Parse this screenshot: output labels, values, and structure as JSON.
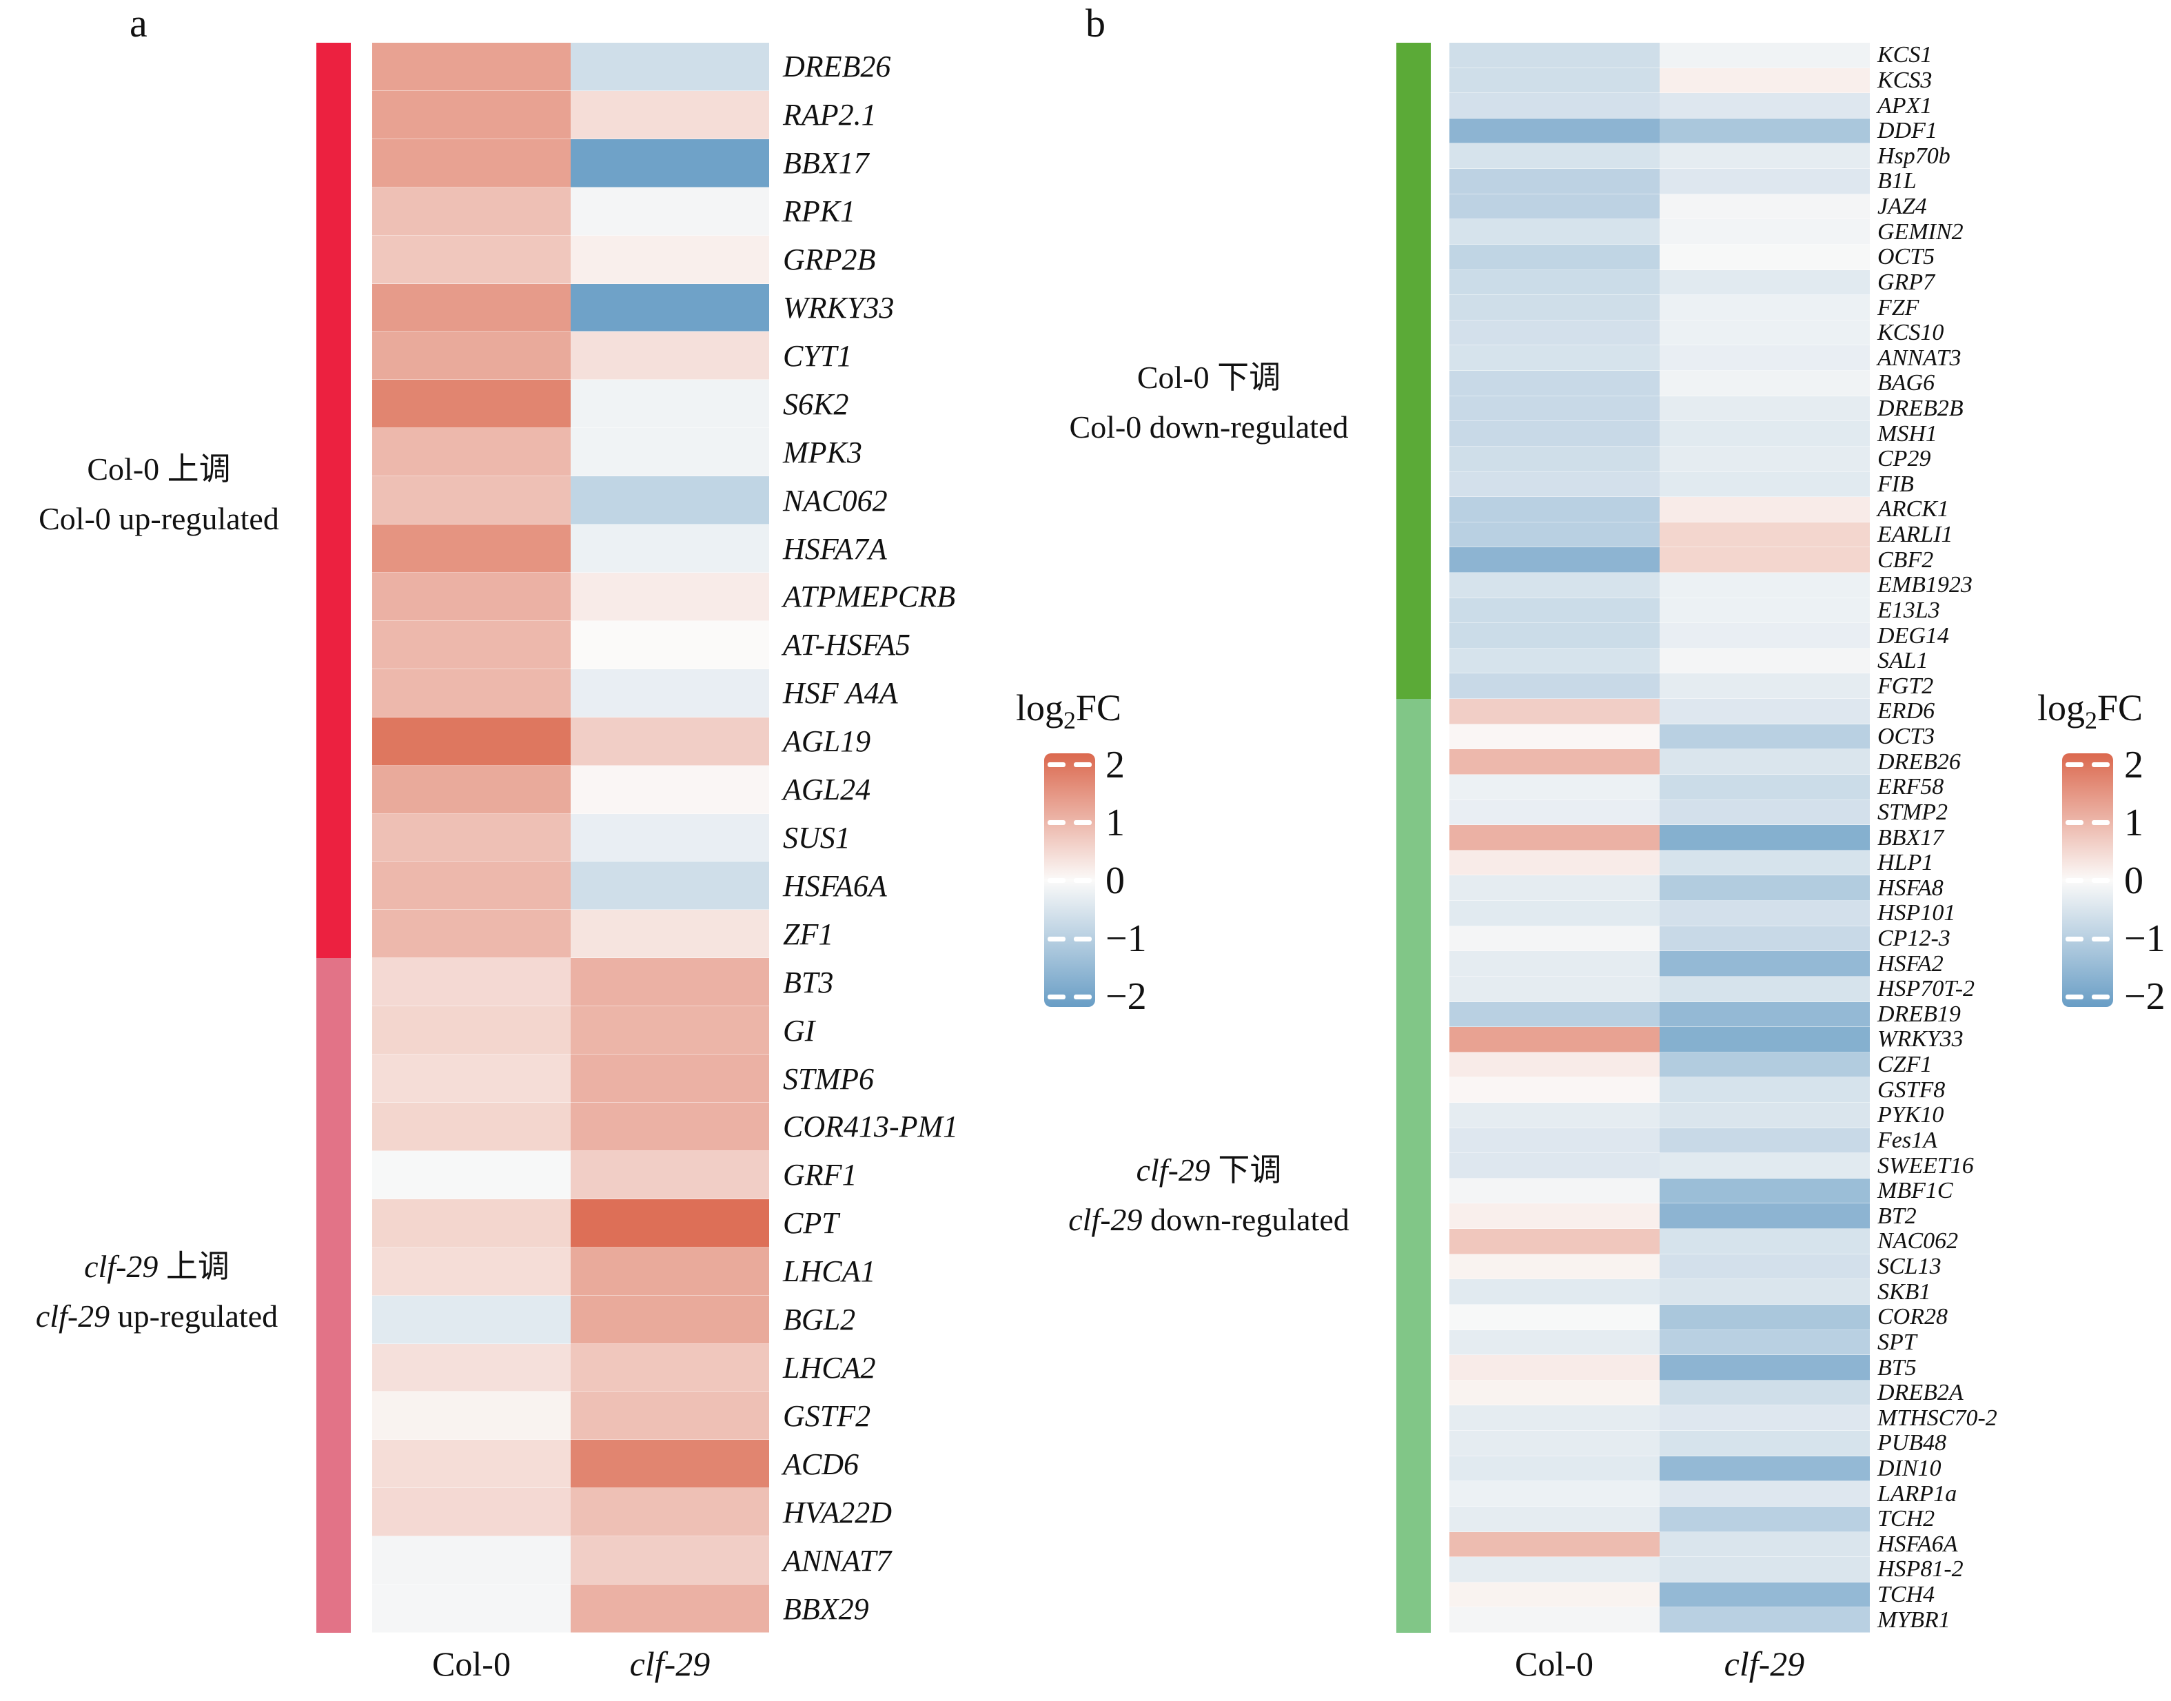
{
  "colormap": {
    "domain": [
      -2,
      2
    ],
    "positive": "#db684e",
    "mid": "#fbfaf9",
    "negative": "#689dc5"
  },
  "legend": {
    "title_log": "log",
    "title_sub": "2",
    "title_fc": "FC",
    "ticks": [
      "2",
      "1",
      "0",
      "−1",
      "−2"
    ],
    "tick_values": [
      2,
      1,
      0,
      -1,
      -2
    ]
  },
  "chart_data": [
    {
      "type": "heatmap",
      "panel_letter": "a",
      "xlabel": "",
      "ylabel": "",
      "value_label": "log2FC",
      "value_range": [
        -2,
        2
      ],
      "columns": [
        {
          "t": "Col-0",
          "i": false
        },
        {
          "t": "clf-29",
          "i": true
        }
      ],
      "groups": [
        {
          "color": "#ec2140",
          "count": 19,
          "line1": [
            {
              "t": "Col-0 上调",
              "i": false
            }
          ],
          "line2": [
            {
              "t": "Col-0 up-regulated",
              "i": false
            }
          ]
        },
        {
          "color": "#e27387",
          "count": 14,
          "line1": [
            {
              "t": "clf-29",
              "i": true
            },
            {
              "t": " 上调",
              "i": false
            }
          ],
          "line2": [
            {
              "t": "clf-29",
              "i": true
            },
            {
              "t": " up-regulated",
              "i": false
            }
          ]
        }
      ],
      "genes": [
        [
          "DREB26",
          1.2,
          -0.6
        ],
        [
          "RAP2.1",
          1.2,
          0.4
        ],
        [
          "BBX17",
          1.2,
          -1.9
        ],
        [
          "RPK1",
          0.8,
          -0.1
        ],
        [
          "GRP2B",
          0.7,
          0.15
        ],
        [
          "WRKY33",
          1.3,
          -1.9
        ],
        [
          "CYT1",
          1.1,
          0.35
        ],
        [
          "S6K2",
          1.6,
          -0.15
        ],
        [
          "MPK3",
          0.9,
          -0.15
        ],
        [
          "NAC062",
          0.8,
          -0.8
        ],
        [
          "HSFA7A",
          1.4,
          -0.2
        ],
        [
          "ATPMEPCRB",
          1.0,
          0.2
        ],
        [
          "AT-HSFA5",
          0.9,
          0.0
        ],
        [
          "HSF A4A",
          0.9,
          -0.25
        ],
        [
          "AGL19",
          1.8,
          0.6
        ],
        [
          "AGL24",
          1.1,
          0.05
        ],
        [
          "SUS1",
          0.8,
          -0.25
        ],
        [
          "HSFA6A",
          0.9,
          -0.6
        ],
        [
          "ZF1",
          0.9,
          0.3
        ],
        [
          "BT3",
          0.45,
          1.0
        ],
        [
          "GI",
          0.5,
          0.95
        ],
        [
          "STMP6",
          0.4,
          1.0
        ],
        [
          "COR413-PM1",
          0.5,
          1.0
        ],
        [
          "GRF1",
          -0.05,
          0.6
        ],
        [
          "CPT",
          0.5,
          1.9
        ],
        [
          "LHCA1",
          0.4,
          1.1
        ],
        [
          "BGL2",
          -0.35,
          1.1
        ],
        [
          "LHCA2",
          0.35,
          0.7
        ],
        [
          "GSTF2",
          0.1,
          0.8
        ],
        [
          "ACD6",
          0.4,
          1.6
        ],
        [
          "HVA22D",
          0.45,
          0.8
        ],
        [
          "ANNAT7",
          -0.1,
          0.6
        ],
        [
          "BBX29",
          -0.08,
          1.0
        ]
      ]
    },
    {
      "type": "heatmap",
      "panel_letter": "b",
      "xlabel": "",
      "ylabel": "",
      "value_label": "log2FC",
      "value_range": [
        -2,
        2
      ],
      "columns": [
        {
          "t": "Col-0",
          "i": false
        },
        {
          "t": "clf-29",
          "i": true
        }
      ],
      "groups": [
        {
          "color": "#5baa37",
          "count": 26,
          "line1": [
            {
              "t": "Col-0 下调",
              "i": false
            }
          ],
          "line2": [
            {
              "t": "Col-0 down-regulated",
              "i": false
            }
          ]
        },
        {
          "color": "#81c687",
          "count": 37,
          "line1": [
            {
              "t": "clf-29",
              "i": true
            },
            {
              "t": " 下调",
              "i": false
            }
          ],
          "line2": [
            {
              "t": "clf-29",
              "i": true
            },
            {
              "t": " down-regulated",
              "i": false
            }
          ]
        }
      ],
      "genes": [
        [
          "KCS1",
          -0.6,
          -0.15
        ],
        [
          "KCS3",
          -0.6,
          0.15
        ],
        [
          "APX1",
          -0.55,
          -0.4
        ],
        [
          "DDF1",
          -1.5,
          -1.1
        ],
        [
          "Hsp70b",
          -0.5,
          -0.3
        ],
        [
          "B1L",
          -0.85,
          -0.4
        ],
        [
          "JAZ4",
          -0.85,
          -0.1
        ],
        [
          "GEMIN2",
          -0.5,
          -0.12
        ],
        [
          "OCT5",
          -0.8,
          -0.05
        ],
        [
          "GRP7",
          -0.65,
          -0.35
        ],
        [
          "FZF",
          -0.6,
          -0.2
        ],
        [
          "KCS10",
          -0.55,
          -0.2
        ],
        [
          "ANNAT3",
          -0.5,
          -0.25
        ],
        [
          "BAG6",
          -0.7,
          -0.15
        ],
        [
          "DREB2B",
          -0.7,
          -0.3
        ],
        [
          "MSH1",
          -0.7,
          -0.35
        ],
        [
          "CP29",
          -0.6,
          -0.3
        ],
        [
          "FIB",
          -0.55,
          -0.35
        ],
        [
          "ARCK1",
          -0.9,
          0.2
        ],
        [
          "EARLI1",
          -0.9,
          0.5
        ],
        [
          "CBF2",
          -1.5,
          0.5
        ],
        [
          "EMB1923",
          -0.5,
          -0.2
        ],
        [
          "E13L3",
          -0.65,
          -0.2
        ],
        [
          "DEG14",
          -0.65,
          -0.25
        ],
        [
          "SAL1",
          -0.5,
          -0.1
        ],
        [
          "FGT2",
          -0.7,
          -0.3
        ],
        [
          "ERD6",
          0.6,
          -0.4
        ],
        [
          "OCT3",
          0.05,
          -0.9
        ],
        [
          "DREB26",
          0.9,
          -0.45
        ],
        [
          "ERF58",
          -0.2,
          -0.65
        ],
        [
          "STMP2",
          -0.25,
          -0.55
        ],
        [
          "BBX17",
          1.0,
          -1.6
        ],
        [
          "HLP1",
          0.2,
          -0.5
        ],
        [
          "HSFA8",
          -0.3,
          -1.0
        ],
        [
          "HSP101",
          -0.35,
          -0.55
        ],
        [
          "CP12-3",
          -0.1,
          -0.7
        ],
        [
          "HSFA2",
          -0.3,
          -1.4
        ],
        [
          "HSP70T-2",
          -0.3,
          -0.5
        ],
        [
          "DREB19",
          -0.9,
          -1.4
        ],
        [
          "WRKY33",
          1.2,
          -1.6
        ],
        [
          "CZF1",
          0.2,
          -1.0
        ],
        [
          "GSTF8",
          0.05,
          -0.5
        ],
        [
          "PYK10",
          -0.3,
          -0.45
        ],
        [
          "Fes1A",
          -0.4,
          -0.7
        ],
        [
          "SWEET16",
          -0.4,
          -0.35
        ],
        [
          "MBF1C",
          -0.1,
          -1.3
        ],
        [
          "BT2",
          0.15,
          -1.5
        ],
        [
          "NAC062",
          0.7,
          -0.5
        ],
        [
          "SCL13",
          0.1,
          -0.55
        ],
        [
          "SKB1",
          -0.35,
          -0.45
        ],
        [
          "COR28",
          -0.05,
          -1.1
        ],
        [
          "SPT",
          -0.3,
          -0.9
        ],
        [
          "BT5",
          0.2,
          -1.5
        ],
        [
          "DREB2A",
          0.1,
          -0.6
        ],
        [
          "MTHSC70-2",
          -0.3,
          -0.4
        ],
        [
          "PUB48",
          -0.3,
          -0.5
        ],
        [
          "DIN10",
          -0.35,
          -1.4
        ],
        [
          "LARP1a",
          -0.2,
          -0.4
        ],
        [
          "TCH2",
          -0.3,
          -0.9
        ],
        [
          "HSFA6A",
          0.85,
          -0.45
        ],
        [
          "HSP81-2",
          -0.3,
          -0.45
        ],
        [
          "TCH4",
          0.1,
          -1.4
        ],
        [
          "MYBR1",
          -0.1,
          -0.9
        ]
      ]
    }
  ]
}
